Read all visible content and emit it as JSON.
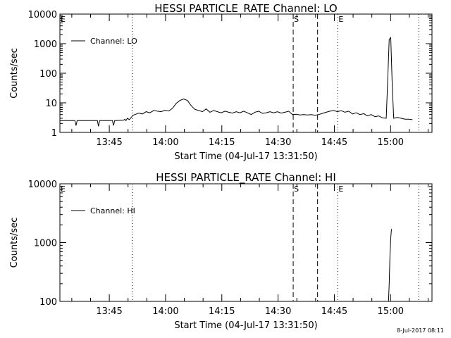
{
  "footer_stamp": "8-Jul-2017 08:11",
  "chart_data": [
    {
      "type": "line",
      "title": "HESSI PARTICLE_RATE Channel: LO",
      "xlabel": "Start Time (04-Jul-17 13:31:50)",
      "ylabel": "Counts/sec",
      "y_scale": "log",
      "ylim": [
        1,
        10000
      ],
      "y_ticks": [
        1,
        10,
        100,
        1000,
        10000
      ],
      "x_unit": "minutes from 13:31:50",
      "xlim": [
        0,
        99.2
      ],
      "x_ticks": [
        {
          "value": 13.17,
          "label": "13:45"
        },
        {
          "value": 28.17,
          "label": "14:00"
        },
        {
          "value": 43.17,
          "label": "14:15"
        },
        {
          "value": 58.17,
          "label": "14:30"
        },
        {
          "value": 73.17,
          "label": "14:45"
        },
        {
          "value": 88.17,
          "label": "15:00"
        }
      ],
      "legend": {
        "position": "top-left",
        "entries": [
          "Channel: LO"
        ]
      },
      "markers": [
        {
          "x": 0,
          "style": "dotted",
          "label": "E"
        },
        {
          "x": 19.3,
          "style": "dotted",
          "label": ""
        },
        {
          "x": 62.2,
          "style": "dashed",
          "label": "S"
        },
        {
          "x": 68.7,
          "style": "dashed",
          "label": ""
        },
        {
          "x": 74.1,
          "style": "dotted",
          "label": "E"
        },
        {
          "x": 95.7,
          "style": "dotted",
          "label": ""
        }
      ],
      "series": [
        {
          "name": "Channel: LO",
          "x": [
            0,
            4,
            4.3,
            4.6,
            5,
            10,
            10.3,
            10.6,
            11,
            14,
            14.3,
            14.6,
            15,
            17,
            17.3,
            17.6,
            18,
            18.5,
            19,
            19.5,
            20,
            21,
            22,
            23,
            24,
            25,
            26,
            27,
            28,
            29,
            30,
            31,
            32,
            33,
            34,
            35,
            36,
            37,
            38,
            39,
            40,
            41,
            42,
            43,
            44,
            45,
            46,
            47,
            48,
            49,
            50,
            51,
            52,
            53,
            54,
            55,
            56,
            57,
            58,
            59,
            60,
            61,
            62,
            63,
            64,
            65,
            66,
            67,
            68,
            69,
            70,
            71,
            72,
            73,
            74,
            75,
            76,
            77,
            78,
            79,
            80,
            81,
            82,
            83,
            84,
            85,
            86,
            87,
            87.4,
            87.8,
            88.2,
            88.6,
            89,
            90,
            91,
            92,
            93,
            94
          ],
          "y": [
            2.5,
            2.5,
            1.7,
            2.5,
            2.5,
            2.5,
            1.6,
            2.5,
            2.5,
            2.5,
            1.7,
            2.5,
            2.5,
            2.6,
            2.8,
            2.5,
            3.0,
            2.7,
            3.2,
            3.8,
            4.0,
            4.5,
            4.2,
            5.0,
            4.6,
            5.5,
            5.2,
            5.0,
            5.6,
            5.3,
            6.5,
            9.5,
            12.0,
            13.5,
            12.0,
            8.0,
            6.0,
            5.5,
            5.0,
            6.2,
            4.8,
            5.5,
            5.0,
            4.6,
            5.2,
            4.8,
            4.5,
            5.0,
            4.6,
            5.2,
            4.6,
            4.0,
            4.8,
            5.2,
            4.4,
            4.6,
            5.0,
            4.6,
            5.0,
            4.5,
            4.8,
            5.2,
            4.0,
            4.1,
            3.9,
            4.0,
            3.9,
            4.0,
            3.8,
            4.0,
            4.4,
            4.8,
            5.2,
            5.5,
            5.0,
            5.4,
            4.8,
            5.2,
            4.2,
            4.6,
            4.0,
            4.3,
            3.6,
            4.0,
            3.4,
            3.6,
            3.1,
            3.0,
            60,
            1400,
            1600,
            40,
            3.0,
            3.2,
            3.0,
            2.8,
            2.8,
            2.7
          ]
        }
      ]
    },
    {
      "type": "line",
      "title": "HESSI PARTICLE_RATE Channel: HI",
      "xlabel": "Start Time (04-Jul-17 13:31:50)",
      "ylabel": "Counts/sec",
      "y_scale": "log",
      "ylim": [
        100,
        10000
      ],
      "y_ticks": [
        100,
        1000,
        10000
      ],
      "x_unit": "minutes from 13:31:50",
      "xlim": [
        0,
        99.2
      ],
      "x_ticks": [
        {
          "value": 13.17,
          "label": "13:45"
        },
        {
          "value": 28.17,
          "label": "14:00"
        },
        {
          "value": 43.17,
          "label": "14:15"
        },
        {
          "value": 58.17,
          "label": "14:30"
        },
        {
          "value": 73.17,
          "label": "14:45"
        },
        {
          "value": 88.17,
          "label": "15:00"
        }
      ],
      "legend": {
        "position": "top-left",
        "entries": [
          "Channel: HI"
        ]
      },
      "markers": [
        {
          "x": 0,
          "style": "dotted",
          "label": "E"
        },
        {
          "x": 19.3,
          "style": "dotted",
          "label": ""
        },
        {
          "x": 62.2,
          "style": "dashed",
          "label": "S"
        },
        {
          "x": 68.7,
          "style": "dashed",
          "label": ""
        },
        {
          "x": 74.1,
          "style": "dotted",
          "label": "E"
        },
        {
          "x": 95.7,
          "style": "dotted",
          "label": ""
        }
      ],
      "series": [
        {
          "name": "Channel: HI",
          "x": [
            87.6,
            87.8,
            88.0,
            88.2,
            88.4
          ],
          "y": [
            100,
            200,
            600,
            1200,
            1700
          ]
        }
      ]
    }
  ]
}
